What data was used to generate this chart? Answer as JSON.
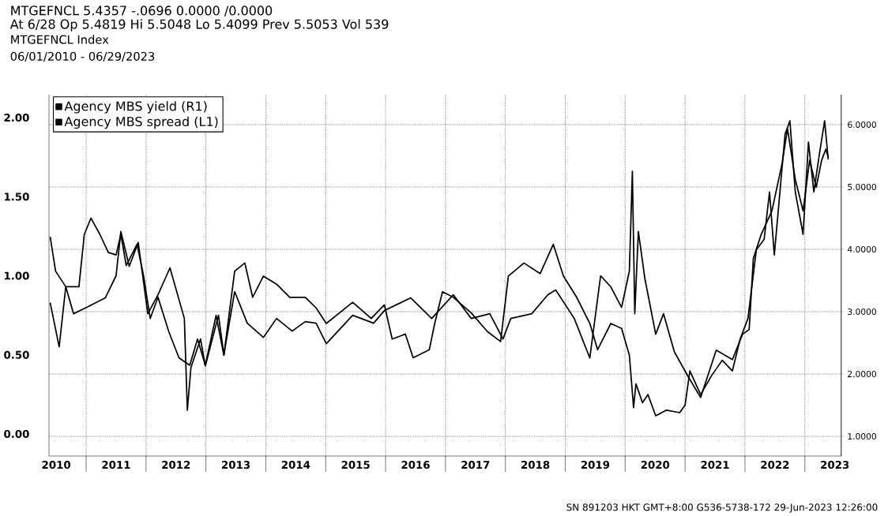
{
  "chart_data": {
    "type": "line",
    "title": "MTGEFNCL 5.4357 -.0696 0.0000 /0.0000",
    "subtitle": "At 6/28 Op 5.4819 Hi 5.5048 Lo 5.4099 Prev 5.5053 Vol 539",
    "annotations": [
      "MTGEFNCL Index",
      "06/01/2010 - 06/29/2023",
      "SN 891203 HKT GMT+8:00 G536-5738-172 29-Jun-2023 12:26:00"
    ],
    "series": [
      {
        "name": "Agency MBS yield (R1)",
        "color": "#000000",
        "axis": "y2",
        "x": [
          2010.4,
          2010.49,
          2010.66,
          2010.88,
          2010.97,
          2011.08,
          2011.23,
          2011.37,
          2011.5,
          2011.58,
          2011.67,
          2011.85,
          2011.96,
          2012.07,
          2012.2,
          2012.38,
          2012.55,
          2012.73,
          2012.86,
          2012.99,
          2013.17,
          2013.3,
          2013.48,
          2013.65,
          2013.78,
          2013.96,
          2014.18,
          2014.4,
          2014.66,
          2014.84,
          2015.01,
          2015.45,
          2015.76,
          2015.98,
          2016.11,
          2016.33,
          2016.46,
          2016.73,
          2016.82,
          2016.95,
          2017.13,
          2017.43,
          2017.7,
          2017.92,
          2018.05,
          2018.31,
          2018.58,
          2018.8,
          2018.97,
          2019.19,
          2019.41,
          2019.54,
          2019.76,
          2019.94,
          2020.07,
          2020.14,
          2020.18,
          2020.29,
          2020.38,
          2020.51,
          2020.69,
          2020.91,
          2021.0,
          2021.08,
          2021.26,
          2021.44,
          2021.62,
          2021.79,
          2021.92,
          2022.05,
          2022.19,
          2022.32,
          2022.41,
          2022.49,
          2022.67,
          2022.75,
          2022.84,
          2022.97,
          2023.06,
          2023.15,
          2023.24,
          2023.33,
          2023.39
        ],
        "values": [
          4.2,
          3.65,
          3.4,
          3.4,
          4.24,
          4.5,
          4.24,
          3.95,
          3.91,
          4.24,
          3.74,
          4.08,
          3.57,
          2.89,
          3.23,
          2.68,
          2.26,
          2.14,
          2.56,
          2.14,
          2.94,
          2.3,
          3.65,
          3.78,
          3.23,
          3.57,
          3.44,
          3.23,
          3.23,
          3.06,
          2.81,
          3.15,
          2.89,
          3.11,
          2.56,
          2.64,
          2.26,
          2.39,
          2.81,
          3.32,
          3.23,
          2.98,
          2.68,
          2.52,
          3.57,
          3.78,
          3.61,
          4.08,
          3.57,
          3.23,
          2.81,
          2.39,
          2.81,
          2.73,
          2.3,
          1.46,
          1.84,
          1.54,
          1.67,
          1.33,
          1.42,
          1.38,
          1.5,
          2.05,
          1.67,
          1.97,
          2.22,
          2.05,
          2.56,
          2.89,
          3.99,
          4.16,
          4.92,
          3.91,
          5.85,
          6.06,
          4.92,
          4.24,
          5.72,
          4.92,
          5.51,
          6.06,
          5.44
        ]
      },
      {
        "name": "Agency MBS spread (L1)",
        "color": "#000000",
        "x": [
          2010.4,
          2010.55,
          2010.66,
          2010.79,
          2011.01,
          2011.32,
          2011.5,
          2011.58,
          2011.72,
          2011.87,
          2012.03,
          2012.2,
          2012.4,
          2012.64,
          2012.69,
          2012.75,
          2012.91,
          2012.99,
          2013.21,
          2013.3,
          2013.48,
          2013.69,
          2013.96,
          2014.18,
          2014.44,
          2014.66,
          2014.84,
          2015.01,
          2015.45,
          2015.8,
          2015.98,
          2016.42,
          2016.77,
          2017.13,
          2017.43,
          2017.74,
          2017.96,
          2018.09,
          2018.44,
          2018.71,
          2018.84,
          2019.15,
          2019.41,
          2019.59,
          2019.76,
          2019.94,
          2020.07,
          2020.12,
          2020.16,
          2020.22,
          2020.33,
          2020.51,
          2020.64,
          2020.82,
          2021.04,
          2021.26,
          2021.52,
          2021.79,
          2021.96,
          2022.07,
          2022.14,
          2022.27,
          2022.45,
          2022.62,
          2022.71,
          2022.84,
          2022.97,
          2023.08,
          2023.19,
          2023.28,
          2023.35,
          2023.39
        ],
        "values": [
          0.83,
          0.55,
          0.93,
          0.76,
          0.8,
          0.86,
          1.0,
          1.28,
          1.06,
          1.21,
          0.76,
          0.88,
          1.05,
          0.73,
          0.15,
          0.42,
          0.6,
          0.43,
          0.75,
          0.5,
          0.9,
          0.7,
          0.61,
          0.73,
          0.65,
          0.71,
          0.7,
          0.57,
          0.75,
          0.7,
          0.78,
          0.86,
          0.73,
          0.88,
          0.73,
          0.76,
          0.6,
          0.73,
          0.76,
          0.88,
          0.91,
          0.73,
          0.48,
          1.0,
          0.93,
          0.8,
          1.03,
          1.66,
          0.76,
          1.28,
          0.98,
          0.63,
          0.76,
          0.52,
          0.37,
          0.23,
          0.53,
          0.47,
          0.63,
          0.66,
          1.11,
          1.26,
          1.41,
          1.71,
          1.93,
          1.61,
          1.41,
          1.73,
          1.56,
          1.73,
          1.8,
          1.75
        ]
      }
    ],
    "xlim": [
      2010.38,
      2023.61
    ],
    "xticks": [
      {
        "value": 2010.5,
        "label": "2010"
      },
      {
        "value": 2011.5,
        "label": "2011"
      },
      {
        "value": 2012.5,
        "label": "2012"
      },
      {
        "value": 2013.5,
        "label": "2013"
      },
      {
        "value": 2014.5,
        "label": "2014"
      },
      {
        "value": 2015.5,
        "label": "2015"
      },
      {
        "value": 2016.5,
        "label": "2016"
      },
      {
        "value": 2017.5,
        "label": "2017"
      },
      {
        "value": 2018.5,
        "label": "2018"
      },
      {
        "value": 2019.5,
        "label": "2019"
      },
      {
        "value": 2020.5,
        "label": "2020"
      },
      {
        "value": 2021.5,
        "label": "2021"
      },
      {
        "value": 2022.5,
        "label": "2022"
      },
      {
        "value": 2023.5,
        "label": "2023"
      },
      {
        "value": 2011,
        "label": null
      },
      {
        "value": 2012,
        "label": null
      },
      {
        "value": 2013,
        "label": null
      },
      {
        "value": 2014,
        "label": null
      },
      {
        "value": 2015,
        "label": null
      },
      {
        "value": 2016,
        "label": null
      },
      {
        "value": 2017,
        "label": null
      },
      {
        "value": 2018,
        "label": null
      },
      {
        "value": 2019,
        "label": null
      },
      {
        "value": 2020,
        "label": null
      },
      {
        "value": 2021,
        "label": null
      },
      {
        "value": 2022,
        "label": null
      },
      {
        "value": 2023,
        "label": null
      }
    ],
    "ylim": [
      -0.14,
      2.145
    ],
    "yticks": [
      {
        "value": 0,
        "label": "0.00"
      },
      {
        "value": 0.5,
        "label": "0.50"
      },
      {
        "value": 1,
        "label": "1.00"
      },
      {
        "value": 1.5,
        "label": "1.50"
      },
      {
        "value": 2,
        "label": "2.00"
      }
    ],
    "y2lim": [
      0.684,
      6.48
    ],
    "y2ticks": [
      {
        "value": 1,
        "label": "1.0000"
      },
      {
        "value": 2,
        "label": "2.0000"
      },
      {
        "value": 3,
        "label": "3.0000"
      },
      {
        "value": 4,
        "label": "4.0000"
      },
      {
        "value": 5,
        "label": "5.0000"
      },
      {
        "value": 6,
        "label": "6.0000"
      }
    ],
    "grid": true,
    "legend": "top left",
    "line_style": "solid"
  }
}
